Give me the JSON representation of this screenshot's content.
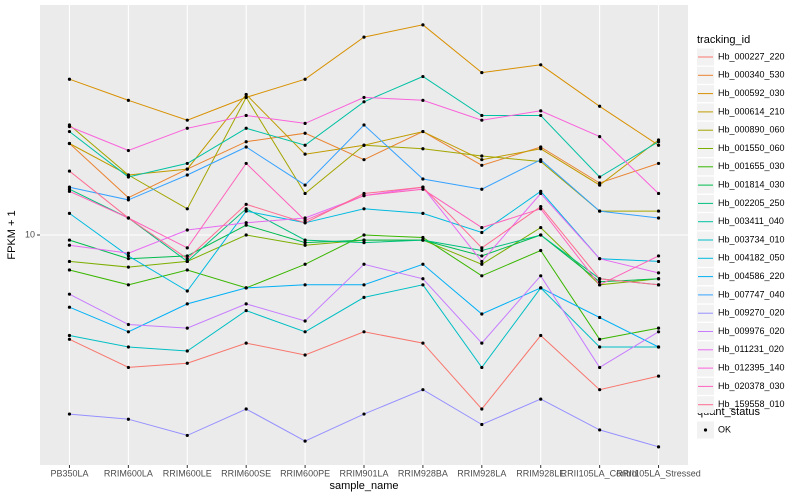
{
  "chart_data": {
    "type": "line",
    "x_label": "sample_name",
    "y_label": "FPKM + 1",
    "categories": [
      "PB350LA",
      "RRIM600LA",
      "RRIM600LE",
      "RRIM600SE",
      "RRIM600PE",
      "RRIM901LA",
      "RRIM928BA",
      "RRIM928LA",
      "RRIM928LE",
      "RRII105LA_Control",
      "RRII105LA_Stressed"
    ],
    "log_scale": true,
    "ylim": [
      4,
      25
    ],
    "yticks": [
      10
    ],
    "grid": true,
    "legend_title": "tracking_id",
    "legend2_title": "quant_status",
    "legend2_entries": [
      "OK"
    ],
    "point_color": "#000000",
    "series": [
      {
        "name": "Hb_000227_220",
        "color": "#F8766D",
        "values": [
          6.6,
          5.9,
          6.0,
          6.5,
          6.2,
          6.8,
          6.5,
          5.0,
          6.7,
          5.4,
          5.7
        ]
      },
      {
        "name": "Hb_000340_530",
        "color": "#EA8331",
        "values": [
          14.4,
          11.6,
          13.0,
          14.5,
          15.0,
          13.5,
          15.1,
          13.2,
          14.2,
          12.3,
          13.3
        ]
      },
      {
        "name": "Hb_000592_030",
        "color": "#D89000",
        "values": [
          18.6,
          17.1,
          15.8,
          17.3,
          18.6,
          22.0,
          23.1,
          19.1,
          19.7,
          16.7,
          14.3
        ]
      },
      {
        "name": "Hb_000614_210",
        "color": "#C09B00",
        "values": [
          14.4,
          12.7,
          13.0,
          17.5,
          13.8,
          14.3,
          15.1,
          13.5,
          14.1,
          12.2,
          14.6
        ]
      },
      {
        "name": "Hb_000890_060",
        "color": "#A3A500",
        "values": [
          15.5,
          12.7,
          11.1,
          17.3,
          11.8,
          14.3,
          14.1,
          13.7,
          13.4,
          11.0,
          11.0
        ]
      },
      {
        "name": "Hb_001550_060",
        "color": "#7CAE00",
        "values": [
          9.0,
          8.8,
          9.0,
          10.0,
          9.6,
          9.8,
          9.8,
          8.9,
          10.3,
          8.2,
          8.4
        ]
      },
      {
        "name": "Hb_001655_030",
        "color": "#39B600",
        "values": [
          8.7,
          8.2,
          8.7,
          8.1,
          8.9,
          10.0,
          9.9,
          8.5,
          9.4,
          6.6,
          6.9
        ]
      },
      {
        "name": "Hb_001814_030",
        "color": "#00BB4E",
        "values": [
          9.8,
          9.1,
          9.2,
          10.4,
          9.7,
          9.8,
          9.8,
          9.2,
          10.0,
          8.3,
          8.4
        ]
      },
      {
        "name": "Hb_002205_250",
        "color": "#00BF7D",
        "values": [
          12.0,
          10.7,
          9.0,
          11.1,
          9.8,
          9.7,
          9.8,
          9.4,
          10.0,
          8.4,
          8.2
        ]
      },
      {
        "name": "Hb_003411_040",
        "color": "#00C1A3",
        "values": [
          15.1,
          12.6,
          13.3,
          15.3,
          14.3,
          17.0,
          18.8,
          16.1,
          16.1,
          12.6,
          14.5
        ]
      },
      {
        "name": "Hb_003734_010",
        "color": "#00BFC4",
        "values": [
          6.7,
          6.4,
          6.3,
          7.4,
          6.8,
          7.8,
          8.2,
          5.9,
          8.1,
          6.4,
          6.4
        ]
      },
      {
        "name": "Hb_004182_050",
        "color": "#00BAE0",
        "values": [
          10.9,
          9.2,
          8.0,
          11.0,
          10.5,
          11.1,
          10.9,
          10.1,
          11.9,
          9.1,
          9.0
        ]
      },
      {
        "name": "Hb_004586_220",
        "color": "#00B0F6",
        "values": [
          7.5,
          6.8,
          7.6,
          8.1,
          8.2,
          8.2,
          8.9,
          7.3,
          8.1,
          7.2,
          6.4
        ]
      },
      {
        "name": "Hb_007747_040",
        "color": "#35A2FF",
        "values": [
          12.1,
          11.5,
          12.7,
          14.2,
          12.2,
          15.5,
          12.5,
          12.0,
          13.5,
          11.0,
          10.7
        ]
      },
      {
        "name": "Hb_009270_020",
        "color": "#9590FF",
        "values": [
          4.9,
          4.8,
          4.5,
          5.0,
          4.4,
          4.9,
          5.4,
          4.7,
          5.2,
          4.6,
          4.3
        ]
      },
      {
        "name": "Hb_009976_020",
        "color": "#C77CFF",
        "values": [
          7.9,
          7.0,
          6.9,
          7.6,
          7.1,
          8.9,
          8.4,
          6.5,
          8.5,
          5.9,
          6.8
        ]
      },
      {
        "name": "Hb_011231_020",
        "color": "#E76BF3",
        "values": [
          9.6,
          9.3,
          10.2,
          10.5,
          10.7,
          11.7,
          12.1,
          9.0,
          11.8,
          9.1,
          8.6
        ]
      },
      {
        "name": "Hb_012395_140",
        "color": "#FA62DB",
        "values": [
          15.4,
          14.0,
          15.3,
          16.1,
          15.6,
          17.3,
          17.1,
          15.8,
          16.4,
          14.8,
          11.8
        ]
      },
      {
        "name": "Hb_020378_030",
        "color": "#FF62BC",
        "values": [
          11.9,
          10.7,
          9.5,
          13.3,
          10.6,
          11.7,
          12.0,
          10.3,
          11.1,
          8.2,
          9.2
        ]
      },
      {
        "name": "Hb_159558_010",
        "color": "#FF6C91",
        "values": [
          12.9,
          10.7,
          9.1,
          11.3,
          10.5,
          11.8,
          12.1,
          9.5,
          11.2,
          8.4,
          8.2
        ]
      }
    ]
  }
}
